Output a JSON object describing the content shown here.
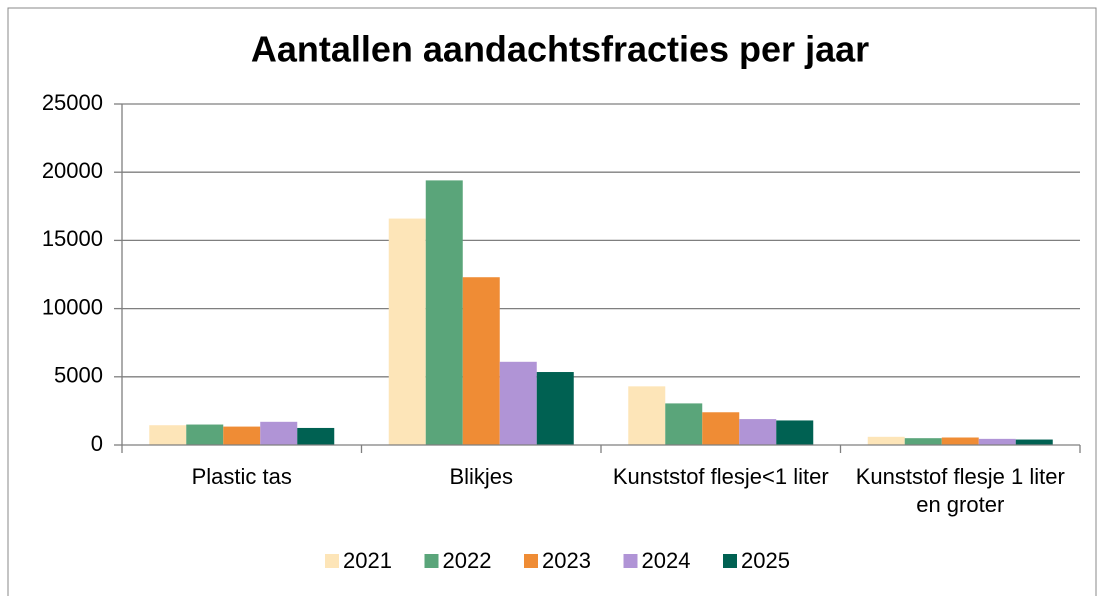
{
  "chart_data": {
    "type": "bar",
    "title": "Aantallen aandachtsfracties per jaar",
    "categories": [
      "Plastic tas",
      "Blikjes",
      "Kunststof flesje<1 liter",
      "Kunststof flesje 1 liter en groter"
    ],
    "series": [
      {
        "name": "2021",
        "color": "#fde5b8",
        "values": [
          1450,
          16600,
          4300,
          600
        ]
      },
      {
        "name": "2022",
        "color": "#5aa57a",
        "values": [
          1500,
          19400,
          3050,
          500
        ]
      },
      {
        "name": "2023",
        "color": "#ef8c35",
        "values": [
          1350,
          12300,
          2400,
          550
        ]
      },
      {
        "name": "2024",
        "color": "#b094d6",
        "values": [
          1700,
          6100,
          1900,
          450
        ]
      },
      {
        "name": "2025",
        "color": "#006152",
        "values": [
          1250,
          5350,
          1800,
          400
        ]
      }
    ],
    "ylim": [
      0,
      25000
    ],
    "yticks": [
      0,
      5000,
      10000,
      15000,
      20000,
      25000
    ],
    "grid": true,
    "legend": "bottom"
  }
}
